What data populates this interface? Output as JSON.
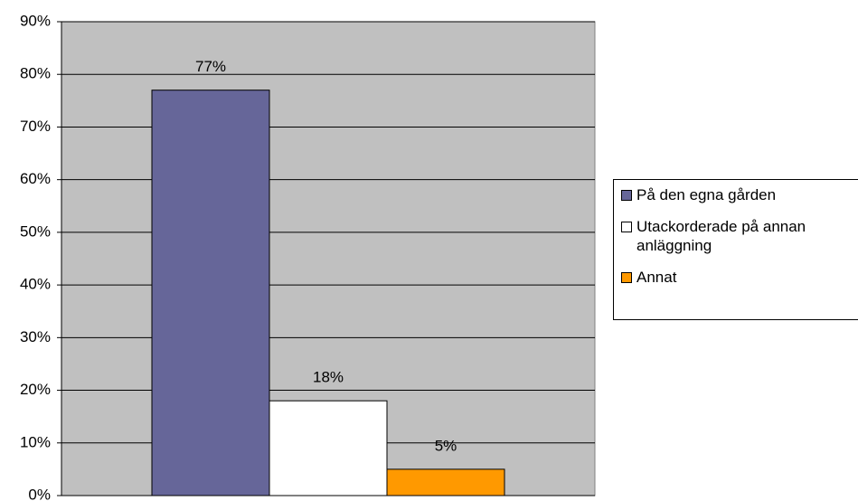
{
  "chart_data": {
    "type": "bar",
    "series": [
      {
        "name": "På den egna gården",
        "color": "#666699",
        "values": [
          77
        ],
        "value_labels": [
          "77%"
        ]
      },
      {
        "name": "Utackorderade på annan anläggning",
        "color": "#ffffff",
        "values": [
          18
        ],
        "value_labels": [
          "18%"
        ]
      },
      {
        "name": "Annat",
        "color": "#ff9900",
        "values": [
          5
        ],
        "value_labels": [
          "5%"
        ]
      }
    ],
    "ylim": [
      0,
      90
    ],
    "yticks": [
      {
        "value": 0,
        "label": "0%"
      },
      {
        "value": 10,
        "label": "10%"
      },
      {
        "value": 20,
        "label": "20%"
      },
      {
        "value": 30,
        "label": "30%"
      },
      {
        "value": 40,
        "label": "40%"
      },
      {
        "value": 50,
        "label": "50%"
      },
      {
        "value": 60,
        "label": "60%"
      },
      {
        "value": 70,
        "label": "70%"
      },
      {
        "value": 80,
        "label": "80%"
      },
      {
        "value": 90,
        "label": "90%"
      }
    ],
    "grid": true,
    "legend": "right"
  }
}
